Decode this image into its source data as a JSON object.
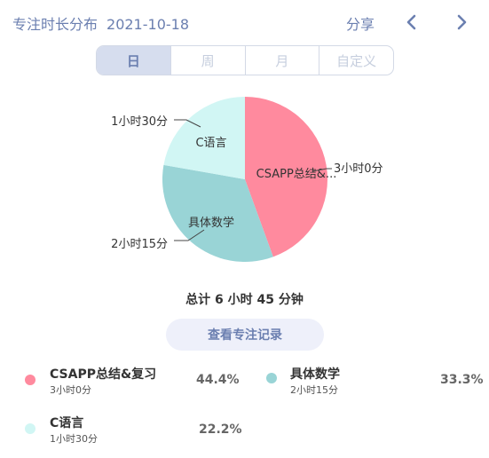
{
  "header": {
    "title": "专注时长分布",
    "date": "2021-10-18",
    "share_label": "分享"
  },
  "tabs": [
    {
      "label": "日",
      "active": true
    },
    {
      "label": "周",
      "active": false
    },
    {
      "label": "月",
      "active": false
    },
    {
      "label": "自定义",
      "active": false
    }
  ],
  "chart_data": {
    "type": "pie",
    "categories": [
      "CSAPP总结&复习",
      "具体数学",
      "C语言"
    ],
    "values": [
      180,
      135,
      90
    ],
    "slice_labels": [
      "CSAPP总结&...",
      "具体数学",
      "C语言"
    ],
    "callouts": [
      "3小时0分",
      "2小时15分",
      "1小时30分"
    ],
    "colors": [
      "#ff8a9e",
      "#99d4d6",
      "#d1f6f4"
    ]
  },
  "total_text": "总计 6 小时 45 分钟",
  "records_button_label": "查看专注记录",
  "legend": [
    {
      "name": "CSAPP总结&复习",
      "duration": "3小时0分",
      "percent": "44.4%",
      "color": "#ff8a9e"
    },
    {
      "name": "具体数学",
      "duration": "2小时15分",
      "percent": "33.3%",
      "color": "#99d4d6"
    },
    {
      "name": "C语言",
      "duration": "1小时30分",
      "percent": "22.2%",
      "color": "#d1f6f4"
    }
  ]
}
